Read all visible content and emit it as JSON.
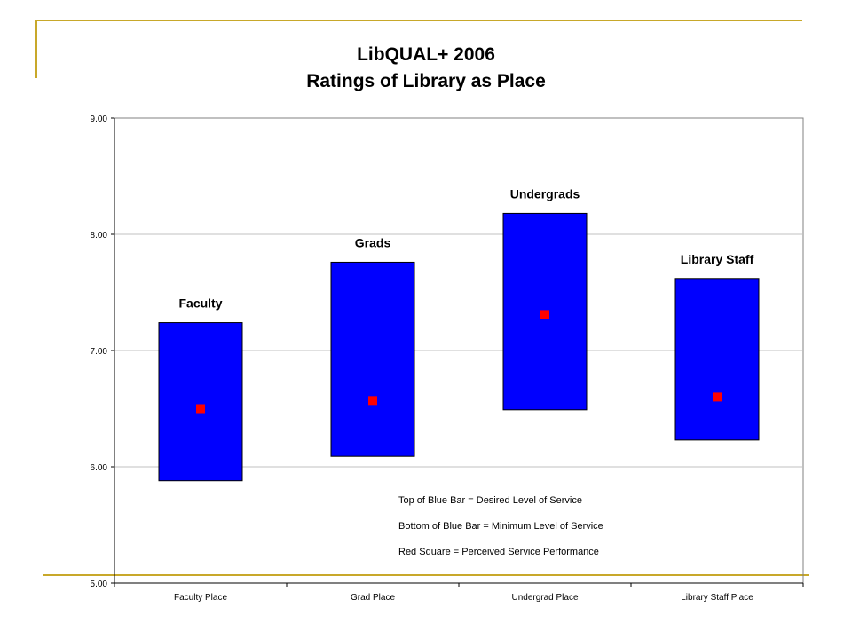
{
  "slide": {
    "title_line_1": "LibQUAL+ 2006",
    "title_line_2": "Ratings of Library as Place",
    "accent_color": "#c8a82a"
  },
  "chart_data": {
    "type": "range-bar",
    "title": "LibQUAL+ 2006 Ratings of Library as Place",
    "xlabel": "",
    "ylabel": "",
    "categories": [
      "Faculty Place",
      "Grad Place",
      "Undergrad Place",
      "Library Staff Place"
    ],
    "group_labels": [
      "Faculty",
      "Grads",
      "Undergrads",
      "Library Staff"
    ],
    "ylim": [
      5.0,
      9.0
    ],
    "y_ticks": [
      "5.00",
      "6.00",
      "7.00",
      "8.00",
      "9.00"
    ],
    "grid": true,
    "series": [
      {
        "name": "Top of Blue Bar = Desired Level of Service",
        "values": [
          7.24,
          7.76,
          8.18,
          7.62
        ]
      },
      {
        "name": "Bottom of Blue Bar = Minimum Level of Service",
        "values": [
          5.88,
          6.09,
          6.49,
          6.23
        ]
      },
      {
        "name": "Red Square = Perceived Service Performance",
        "values": [
          6.5,
          6.57,
          7.31,
          6.6
        ]
      }
    ],
    "bar_color": "#0000ff",
    "point_color": "#ff0000",
    "legend_notes": [
      "Top of Blue Bar = Desired Level of Service",
      "Bottom of Blue Bar = Minimum Level of Service",
      "Red Square = Perceived Service Performance"
    ]
  }
}
